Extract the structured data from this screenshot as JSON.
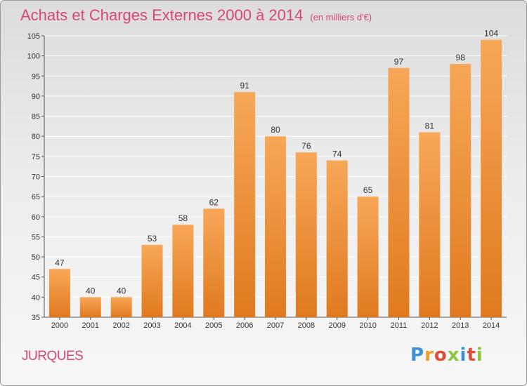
{
  "header": {
    "title": "Achats et Charges Externes 2000 à 2014",
    "unit": "(en milliers d'€)"
  },
  "footer": {
    "commune": "JURQUES",
    "logo_letters": [
      "P",
      "r",
      "o",
      "x",
      "i",
      "t",
      "i"
    ]
  },
  "colors": {
    "title": "#d64873",
    "bar_top": "#f7a757",
    "bar_bottom": "#e07a20",
    "grid": "#ffffff"
  },
  "chart_data": {
    "type": "bar",
    "categories": [
      "2000",
      "2001",
      "2002",
      "2003",
      "2004",
      "2005",
      "2006",
      "2007",
      "2008",
      "2009",
      "2010",
      "2011",
      "2012",
      "2013",
      "2014"
    ],
    "values": [
      47,
      40,
      40,
      53,
      58,
      62,
      91,
      80,
      76,
      74,
      65,
      97,
      81,
      98,
      104
    ],
    "title": "Achats et Charges Externes 2000 à 2014",
    "subtitle": "(en milliers d'€)",
    "xlabel": "",
    "ylabel": "",
    "ylim": [
      35,
      105
    ],
    "yticks": [
      35,
      40,
      45,
      50,
      55,
      60,
      65,
      70,
      75,
      80,
      85,
      90,
      95,
      100,
      105
    ],
    "grid": true,
    "legend": "none"
  }
}
